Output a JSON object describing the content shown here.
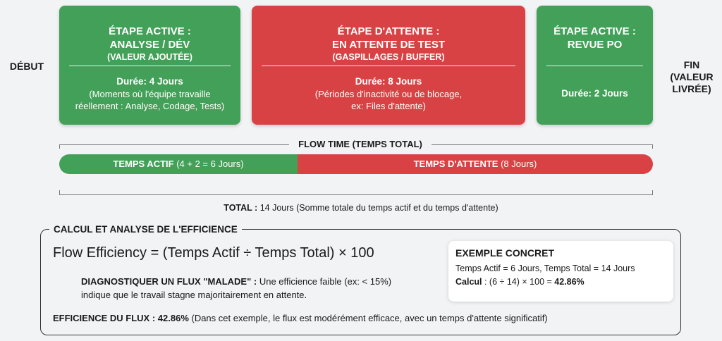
{
  "start_label": "DÉBUT",
  "end_label": [
    "FIN",
    "(VALEUR",
    "LIVRÉE)"
  ],
  "stages": [
    {
      "title": [
        "ÉTAPE ACTIVE :",
        "ANALYSE / DÉV"
      ],
      "subtitle": "(VALEUR AJOUTÉE)",
      "duration": "Durée: 4 Jours",
      "description": [
        "(Moments où l'équipe travaille",
        "réellement : Analyse, Codage, Tests)"
      ],
      "color": "#43a058"
    },
    {
      "title": [
        "ÉTAPE D'ATTENTE :",
        "EN ATTENTE DE TEST"
      ],
      "subtitle": "(GASPILLAGES / BUFFER)",
      "duration": "Durée: 8 Jours",
      "description": [
        "(Périodes d'inactivité ou de blocage,",
        "ex: Files d'attente)"
      ],
      "color": "#d94244"
    },
    {
      "title": [
        "ÉTAPE ACTIVE :",
        "REVUE PO"
      ],
      "duration": "Durée: 2 Jours",
      "color": "#43a058"
    }
  ],
  "flow_time_label": "FLOW TIME (TEMPS TOTAL)",
  "bar": {
    "active": {
      "label": "TEMPS ACTIF",
      "detail": "(4 + 2 = 6 Jours)",
      "days": 6
    },
    "waiting": {
      "label": "TEMPS D'ATTENTE",
      "detail": "(8 Jours)",
      "days": 8
    }
  },
  "total": {
    "label": "TOTAL :",
    "text": "14 Jours (Somme totale du temps actif et du temps d'attente)"
  },
  "analysis": {
    "title": "CALCUL ET ANALYSE DE L'EFFICIENCE",
    "formula": "Flow Efficiency = (Temps Actif ÷ Temps Total) × 100",
    "diagnostic_label": "DIAGNOSTIQUER UN FLUX \"MALADE\" :",
    "diagnostic_text": " Une efficience faible (ex: < 15%)",
    "diagnostic_text2": "indique que le travail stagne majoritairement en attente.",
    "efficiency_label": "EFFICIENCE DU FLUX :",
    "efficiency_value": " 42.86%",
    "efficiency_text": " (Dans cet exemple, le flux est modérément efficace, avec un temps d'attente significatif)",
    "example": {
      "title": "EXEMPLE CONCRET",
      "line1": "Temps Actif = 6 Jours, Temps Total = 14 Jours",
      "calc_label": "Calcul",
      "calc_text": " : (6 ÷ 14) × 100 = ",
      "calc_result": "42.86%"
    }
  }
}
